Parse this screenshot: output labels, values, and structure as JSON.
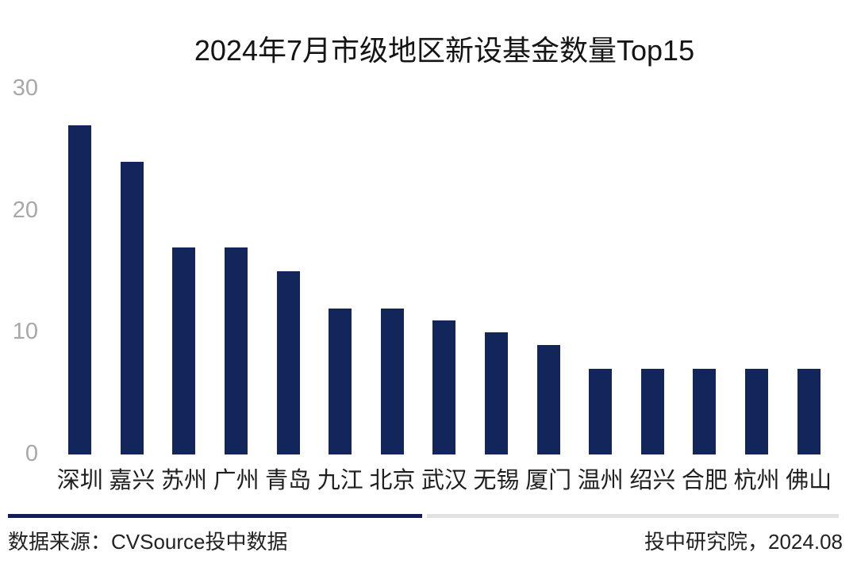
{
  "chart_data": {
    "type": "bar",
    "title": "2024年7月市级地区新设基金数量Top15",
    "categories": [
      "深圳",
      "嘉兴",
      "苏州",
      "广州",
      "青岛",
      "九江",
      "北京",
      "武汉",
      "无锡",
      "厦门",
      "温州",
      "绍兴",
      "合肥",
      "杭州",
      "佛山"
    ],
    "values": [
      27,
      24,
      17,
      17,
      15,
      12,
      12,
      11,
      10,
      9,
      7,
      7,
      7,
      7,
      7
    ],
    "xlabel": "",
    "ylabel": "",
    "ylim": [
      0,
      30
    ],
    "yticks": [
      0,
      10,
      20,
      30
    ],
    "grid": false,
    "legend_position": "none",
    "bar_color": "#12265C",
    "tick_label_color": "#A8A8A8",
    "category_label_color": "#1F1F1F",
    "title_color": "#141414",
    "background_color": "#FFFFFF"
  },
  "footer": {
    "source": "数据来源：CVSource投中数据",
    "credit": "投中研究院，2024.08",
    "divider_dark_color": "#141E52",
    "divider_light_color": "#E2E2E2",
    "text_color": "#222222"
  }
}
